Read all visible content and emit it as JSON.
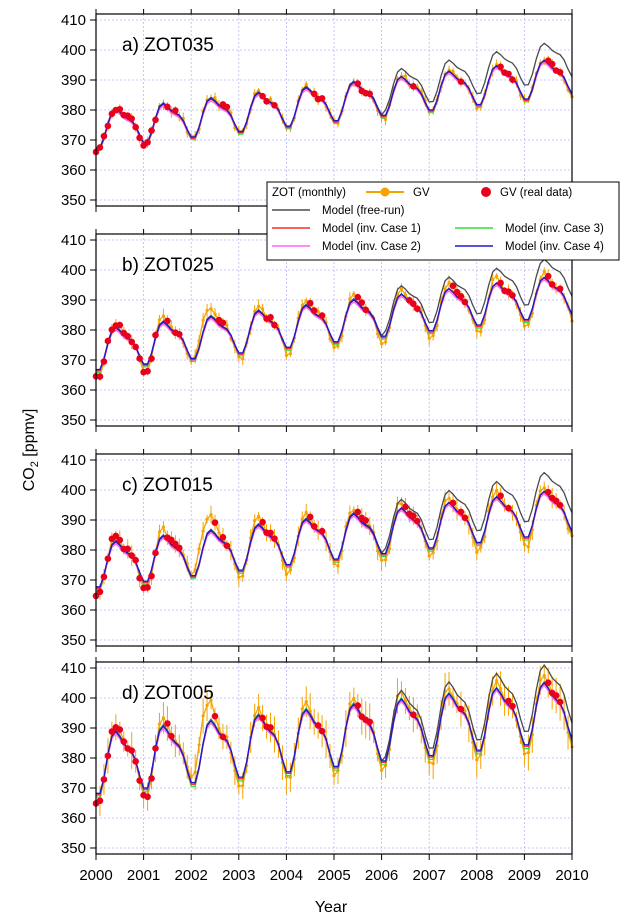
{
  "chart_data": {
    "type": "line",
    "xlabel": "Year",
    "ylabel": "CO",
    "ylabel_sub": "2",
    "ylabel_unit": " [ppmv]",
    "xlim": [
      2000,
      2010
    ],
    "x_ticks": [
      "2000",
      "2001",
      "2002",
      "2003",
      "2004",
      "2005",
      "2006",
      "2007",
      "2008",
      "2009",
      "2010"
    ],
    "ylim": [
      348,
      412
    ],
    "y_ticks": [
      "350",
      "360",
      "370",
      "380",
      "390",
      "400",
      "410"
    ],
    "grid": true,
    "colors": {
      "gv": "#f5a300",
      "gv_real": "#e8001c",
      "free_run": "#4a4a4a",
      "case1": "#ff2a2a",
      "case2": "#ff66ff",
      "case3": "#33dd33",
      "case4": "#1c1ccc",
      "grid": "#b8b8ff"
    },
    "legend": {
      "title": "ZOT (monthly)",
      "gv": "GV",
      "gv_real": "GV (real data)",
      "free_run": "Model (free-run)",
      "case1": "Model (inv. Case 1)",
      "case2": "Model (inv. Case 2)",
      "case3": "Model (inv. Case 3)",
      "case4": "Model (inv. Case 4)"
    },
    "panels": [
      {
        "label": "a) ZOT035",
        "base": 374.0,
        "trend": 1.8,
        "amp": 5.5,
        "obs_amp": 6.0,
        "free_extra": 7.5,
        "spread": 0.8,
        "anomaly": 0
      },
      {
        "label": "b) ZOT025",
        "base": 374.0,
        "trend": 1.85,
        "amp": 6.0,
        "obs_amp": 7.5,
        "free_extra": 8.0,
        "spread": 1.0,
        "anomaly": 3
      },
      {
        "label": "c) ZOT015",
        "base": 375.5,
        "trend": 1.85,
        "amp": 6.5,
        "obs_amp": 8.5,
        "free_extra": 8.5,
        "spread": 1.4,
        "anomaly": 6
      },
      {
        "label": "d) ZOT005",
        "base": 379.0,
        "trend": 1.8,
        "amp": 9.0,
        "obs_amp": 11.0,
        "free_extra": 7.5,
        "spread": 2.5,
        "anomaly": 9
      }
    ]
  }
}
